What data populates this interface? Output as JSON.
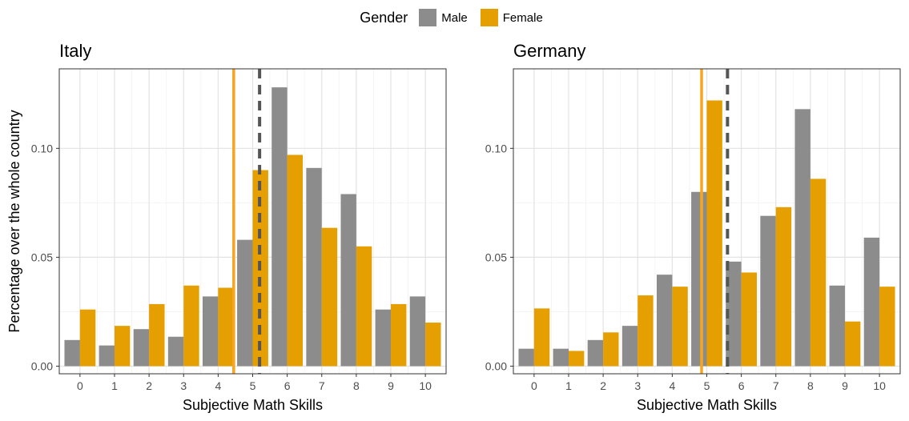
{
  "legend": {
    "title": "Gender",
    "items": [
      {
        "label": "Male",
        "color": "#8c8c8c"
      },
      {
        "label": "Female",
        "color": "#e69f00"
      }
    ]
  },
  "chart_data": [
    {
      "type": "bar",
      "title": "Italy",
      "xlabel": "Subjective Math Skills",
      "ylabel": "Percentage over the whole country",
      "categories": [
        "0",
        "1",
        "2",
        "3",
        "4",
        "5",
        "6",
        "7",
        "8",
        "9",
        "10"
      ],
      "series": [
        {
          "name": "Male",
          "color": "#8c8c8c",
          "values": [
            0.012,
            0.0095,
            0.017,
            0.0135,
            0.032,
            0.058,
            0.128,
            0.091,
            0.079,
            0.026,
            0.032
          ]
        },
        {
          "name": "Female",
          "color": "#e69f00",
          "values": [
            0.026,
            0.0185,
            0.0285,
            0.037,
            0.036,
            0.09,
            0.097,
            0.0635,
            0.055,
            0.0285,
            0.02
          ]
        }
      ],
      "vlines": [
        {
          "series": "Female",
          "x": 4.45,
          "style": "solid",
          "color": "#f5a623"
        },
        {
          "series": "Male",
          "x": 5.2,
          "style": "dashed",
          "color": "#555555"
        }
      ],
      "ylim": [
        -0.0035,
        0.1365
      ],
      "yticks": [
        0.0,
        0.05,
        0.1
      ],
      "ytick_labels": [
        "0.00",
        "0.05",
        "0.10"
      ],
      "grid": true,
      "legend_position": "top"
    },
    {
      "type": "bar",
      "title": "Germany",
      "xlabel": "Subjective Math Skills",
      "ylabel": "",
      "categories": [
        "0",
        "1",
        "2",
        "3",
        "4",
        "5",
        "6",
        "7",
        "8",
        "9",
        "10"
      ],
      "series": [
        {
          "name": "Male",
          "color": "#8c8c8c",
          "values": [
            0.008,
            0.008,
            0.012,
            0.0185,
            0.042,
            0.08,
            0.048,
            0.069,
            0.118,
            0.037,
            0.059
          ]
        },
        {
          "name": "Female",
          "color": "#e69f00",
          "values": [
            0.0265,
            0.007,
            0.0155,
            0.0325,
            0.0365,
            0.122,
            0.043,
            0.073,
            0.086,
            0.0205,
            0.0365
          ]
        }
      ],
      "vlines": [
        {
          "series": "Female",
          "x": 4.85,
          "style": "solid",
          "color": "#f5a623"
        },
        {
          "series": "Male",
          "x": 5.6,
          "style": "dashed",
          "color": "#555555"
        }
      ],
      "ylim": [
        -0.0035,
        0.1365
      ],
      "yticks": [
        0.0,
        0.05,
        0.1
      ],
      "ytick_labels": [
        "0.00",
        "0.05",
        "0.10"
      ],
      "grid": true,
      "legend_position": "top"
    }
  ]
}
